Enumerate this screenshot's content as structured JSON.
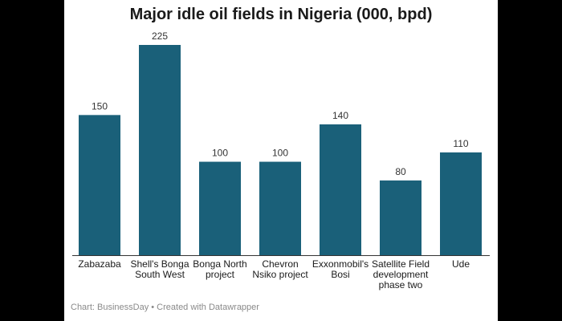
{
  "chart_data": {
    "type": "bar",
    "title": "Major idle oil fields in Nigeria (000, bpd)",
    "categories": [
      [
        "Zabazaba"
      ],
      [
        "Shell's Bonga",
        "South West"
      ],
      [
        "Bonga North",
        "project"
      ],
      [
        "Chevron",
        "Nsiko project"
      ],
      [
        "Exxonmobil's",
        "Bosi"
      ],
      [
        "Satellite Field",
        "development",
        "phase two"
      ],
      [
        "Ude"
      ]
    ],
    "values": [
      150,
      225,
      100,
      100,
      140,
      80,
      110
    ],
    "value_labels": [
      "150",
      "225",
      "100",
      "100",
      "140",
      "80",
      "110"
    ],
    "ylim": [
      0,
      240
    ],
    "xlabel": "",
    "ylabel": "",
    "bar_color": "#1a6079",
    "grid": false
  },
  "footer": {
    "text": "Chart: BusinessDay • Created with Datawrapper"
  }
}
